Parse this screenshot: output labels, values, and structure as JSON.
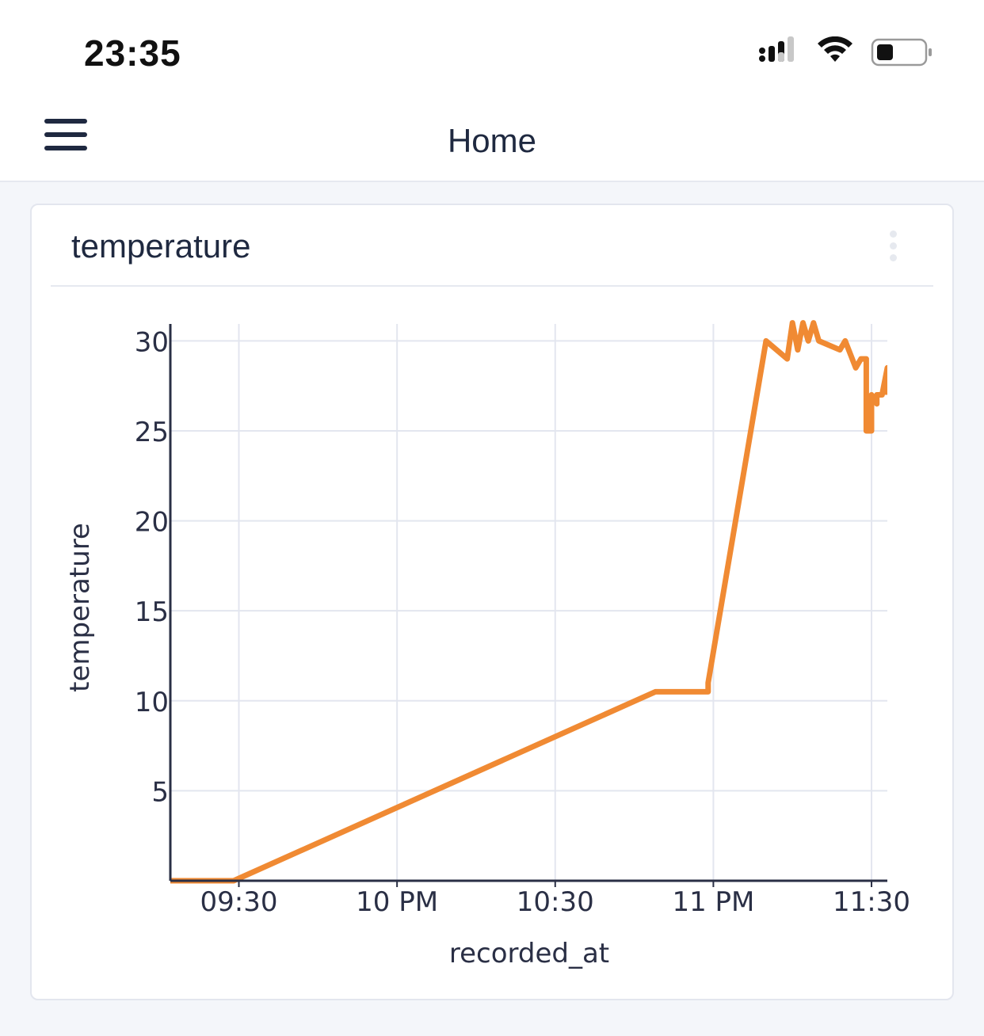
{
  "status_bar": {
    "time": "23:35",
    "icons": [
      "signal-icon",
      "wifi-icon",
      "battery-icon"
    ],
    "battery_level": 0.35
  },
  "app_bar": {
    "menu_icon": "hamburger-menu-icon",
    "title": "Home"
  },
  "card": {
    "title": "temperature",
    "menu_icon": "more-vertical-icon"
  },
  "colors": {
    "line": "#f08a33",
    "grid": "#e3e6ef",
    "axis": "#2a2f45"
  },
  "chart_data": {
    "type": "line",
    "title": "",
    "xlabel": "recorded_at",
    "ylabel": "temperature",
    "x_ticks": [
      {
        "t": "21:30",
        "label": "09:30"
      },
      {
        "t": "22:00",
        "label": "10 PM"
      },
      {
        "t": "22:30",
        "label": "10:30"
      },
      {
        "t": "23:00",
        "label": "11 PM"
      },
      {
        "t": "23:30",
        "label": "11:30"
      }
    ],
    "y_ticks": [
      5,
      10,
      15,
      20,
      25,
      30
    ],
    "xlim": [
      "21:17",
      "23:33"
    ],
    "ylim": [
      0,
      30.5
    ],
    "grid": true,
    "series": [
      {
        "points": [
          {
            "x": "21:17",
            "y": 0
          },
          {
            "x": "21:29",
            "y": 0
          },
          {
            "x": "22:49",
            "y": 10.5
          },
          {
            "x": "22:59",
            "y": 10.5
          },
          {
            "x": "22:59",
            "y": 11
          },
          {
            "x": "23:10",
            "y": 30
          },
          {
            "x": "23:14",
            "y": 29
          },
          {
            "x": "23:15",
            "y": 31
          },
          {
            "x": "23:16",
            "y": 29.5
          },
          {
            "x": "23:17",
            "y": 31
          },
          {
            "x": "23:18",
            "y": 30
          },
          {
            "x": "23:19",
            "y": 31
          },
          {
            "x": "23:20",
            "y": 30
          },
          {
            "x": "23:24",
            "y": 29.5
          },
          {
            "x": "23:25",
            "y": 30
          },
          {
            "x": "23:27",
            "y": 28.5
          },
          {
            "x": "23:28",
            "y": 29
          },
          {
            "x": "23:29",
            "y": 29
          },
          {
            "x": "23:29",
            "y": 25
          },
          {
            "x": "23:30",
            "y": 25
          },
          {
            "x": "23:30",
            "y": 27
          },
          {
            "x": "23:31",
            "y": 26.5
          },
          {
            "x": "23:31",
            "y": 27
          },
          {
            "x": "23:32",
            "y": 27
          },
          {
            "x": "23:33",
            "y": 28.5
          },
          {
            "x": "23:33",
            "y": 27
          }
        ]
      }
    ]
  }
}
